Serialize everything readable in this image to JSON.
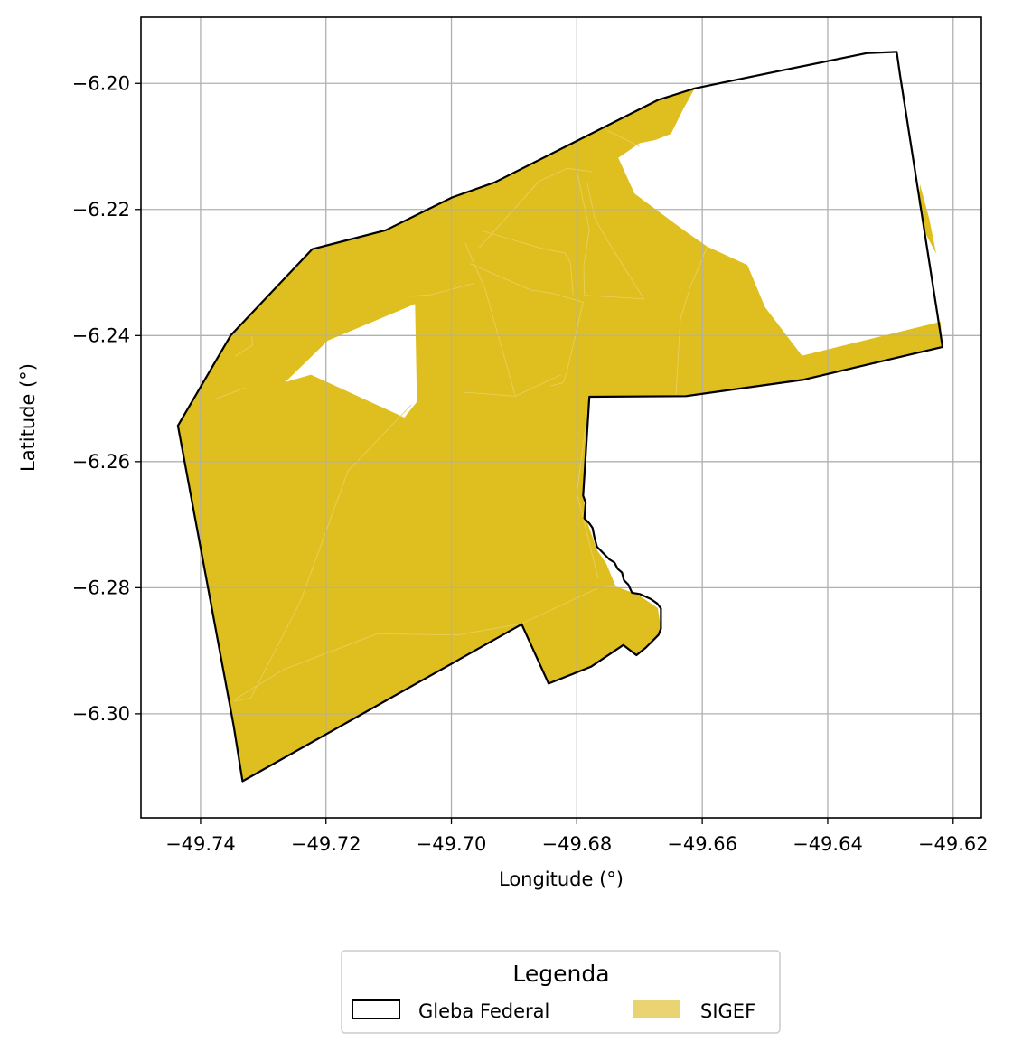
{
  "chart_data": {
    "type": "map",
    "xlabel": "Longitude (°)",
    "ylabel": "Latitude (°)",
    "xlim": [
      -49.7495,
      -49.6155
    ],
    "ylim": [
      -6.3165,
      -6.1895
    ],
    "x_ticks": [
      -49.74,
      -49.72,
      -49.7,
      -49.68,
      -49.66,
      -49.64,
      -49.62
    ],
    "x_tick_labels": [
      "−49.74",
      "−49.72",
      "−49.70",
      "−49.68",
      "−49.66",
      "−49.64",
      "−49.62"
    ],
    "y_ticks": [
      -6.2,
      -6.22,
      -6.24,
      -6.26,
      -6.28,
      -6.3
    ],
    "y_tick_labels": [
      "−6.20",
      "−6.22",
      "−6.24",
      "−6.26",
      "−6.28",
      "−6.30"
    ],
    "grid": true,
    "colors": {
      "sigef": "#dfbf1f",
      "sigef_legend": "#e9d372",
      "boundary": "#000000",
      "grid": "#b0b0b0"
    },
    "legend": {
      "title": "Legenda",
      "placement": "bottom-center",
      "entries": [
        {
          "label": "Gleba Federal",
          "style": "outline"
        },
        {
          "label": "SIGEF",
          "style": "fill"
        }
      ]
    },
    "layers": {
      "sigef_polygons": [
        [
          [
            -49.7436,
            -6.2543
          ],
          [
            -49.7352,
            -6.24
          ],
          [
            -49.7222,
            -6.2263
          ],
          [
            -49.7105,
            -6.2233
          ],
          [
            -49.6999,
            -6.2181
          ],
          [
            -49.6931,
            -6.2157
          ],
          [
            -49.667,
            -6.2026
          ],
          [
            -49.6612,
            -6.2008
          ],
          [
            -49.663,
            -6.204
          ],
          [
            -49.665,
            -6.208
          ],
          [
            -49.6675,
            -6.209
          ],
          [
            -49.67,
            -6.2095
          ],
          [
            -49.6734,
            -6.2118
          ],
          [
            -49.6708,
            -6.2175
          ],
          [
            -49.6632,
            -6.2231
          ],
          [
            -49.6592,
            -6.2259
          ],
          [
            -49.6528,
            -6.2288
          ],
          [
            -49.65,
            -6.2355
          ],
          [
            -49.6441,
            -6.2432
          ],
          [
            -49.622,
            -6.2378
          ],
          [
            -49.6217,
            -6.2418
          ],
          [
            -49.6438,
            -6.247
          ],
          [
            -49.6626,
            -6.2496
          ],
          [
            -49.678,
            -6.2497
          ],
          [
            -49.679,
            -6.2654
          ],
          [
            -49.6784,
            -6.2695
          ],
          [
            -49.6768,
            -6.274
          ],
          [
            -49.6753,
            -6.2762
          ],
          [
            -49.6738,
            -6.2798
          ],
          [
            -49.6703,
            -6.2811
          ],
          [
            -49.6671,
            -6.2832
          ],
          [
            -49.6665,
            -6.2871
          ],
          [
            -49.6705,
            -6.2907
          ],
          [
            -49.6726,
            -6.2891
          ],
          [
            -49.6777,
            -6.2925
          ],
          [
            -49.6845,
            -6.2952
          ],
          [
            -49.6888,
            -6.2858
          ],
          [
            -49.7333,
            -6.3107
          ],
          [
            -49.7347,
            -6.302
          ]
        ],
        [
          [
            -49.6253,
            -6.216
          ],
          [
            -49.6238,
            -6.2215
          ],
          [
            -49.6227,
            -6.227
          ],
          [
            -49.6243,
            -6.224
          ],
          [
            -49.6255,
            -6.219
          ]
        ]
      ],
      "sigef_holes": [
        [
          [
            -49.7058,
            -6.235
          ],
          [
            -49.7197,
            -6.2408
          ],
          [
            -49.7265,
            -6.2474
          ],
          [
            -49.7224,
            -6.2462
          ],
          [
            -49.7075,
            -6.253
          ],
          [
            -49.7055,
            -6.2505
          ]
        ]
      ],
      "sigef_internal_lines": [
        [
          [
            -49.7345,
            -6.2433
          ],
          [
            -49.7317,
            -6.2415
          ],
          [
            -49.7318,
            -6.2401
          ]
        ],
        [
          [
            -49.7375,
            -6.25
          ],
          [
            -49.7329,
            -6.2483
          ]
        ],
        [
          [
            -49.7067,
            -6.2338
          ],
          [
            -49.7032,
            -6.2335
          ],
          [
            -49.6964,
            -6.2317
          ]
        ],
        [
          [
            -49.6978,
            -6.2253
          ],
          [
            -49.6946,
            -6.2327
          ],
          [
            -49.6898,
            -6.2496
          ]
        ],
        [
          [
            -49.6951,
            -6.2234
          ],
          [
            -49.6855,
            -6.2262
          ],
          [
            -49.6819,
            -6.2269
          ],
          [
            -49.681,
            -6.2285
          ],
          [
            -49.6806,
            -6.2335
          ]
        ],
        [
          [
            -49.697,
            -6.2286
          ],
          [
            -49.6873,
            -6.2328
          ],
          [
            -49.6839,
            -6.2333
          ],
          [
            -49.679,
            -6.2347
          ],
          [
            -49.6816,
            -6.2458
          ],
          [
            -49.6822,
            -6.2475
          ],
          [
            -49.6842,
            -6.248
          ]
        ],
        [
          [
            -49.6981,
            -6.249
          ],
          [
            -49.6898,
            -6.2496
          ],
          [
            -49.6825,
            -6.2462
          ]
        ],
        [
          [
            -49.6956,
            -6.2261
          ],
          [
            -49.686,
            -6.2155
          ],
          [
            -49.6815,
            -6.2135
          ],
          [
            -49.6776,
            -6.214
          ]
        ],
        [
          [
            -49.68,
            -6.214
          ],
          [
            -49.678,
            -6.2232
          ],
          [
            -49.6789,
            -6.2289
          ],
          [
            -49.6788,
            -6.2336
          ]
        ],
        [
          [
            -49.6788,
            -6.2336
          ],
          [
            -49.6693,
            -6.2342
          ],
          [
            -49.6752,
            -6.2248
          ],
          [
            -49.6771,
            -6.2215
          ],
          [
            -49.6784,
            -6.2157
          ]
        ],
        [
          [
            -49.6751,
            -6.2075
          ],
          [
            -49.67,
            -6.21
          ]
        ],
        [
          [
            -49.6592,
            -6.2259
          ],
          [
            -49.662,
            -6.2325
          ],
          [
            -49.6635,
            -6.2374
          ],
          [
            -49.6642,
            -6.2493
          ]
        ],
        [
          [
            -49.7064,
            -6.251
          ],
          [
            -49.7165,
            -6.2615
          ],
          [
            -49.724,
            -6.282
          ],
          [
            -49.732,
            -6.2975
          ],
          [
            -49.7347,
            -6.298
          ]
        ],
        [
          [
            -49.7347,
            -6.2978
          ],
          [
            -49.7268,
            -6.293
          ],
          [
            -49.7118,
            -6.2873
          ],
          [
            -49.699,
            -6.2875
          ],
          [
            -49.6888,
            -6.2857
          ],
          [
            -49.6765,
            -6.28
          ],
          [
            -49.6738,
            -6.2798
          ]
        ],
        [
          [
            -49.678,
            -6.2497
          ],
          [
            -49.68,
            -6.265
          ],
          [
            -49.6766,
            -6.2785
          ]
        ]
      ],
      "gleba_federal": [
        [
          -49.7436,
          -6.2543
        ],
        [
          -49.7352,
          -6.24
        ],
        [
          -49.7222,
          -6.2263
        ],
        [
          -49.7105,
          -6.2233
        ],
        [
          -49.6999,
          -6.2181
        ],
        [
          -49.6931,
          -6.2157
        ],
        [
          -49.667,
          -6.2026
        ],
        [
          -49.6612,
          -6.2008
        ],
        [
          -49.6525,
          -6.199
        ],
        [
          -49.6338,
          -6.1952
        ],
        [
          -49.629,
          -6.195
        ],
        [
          -49.6285,
          -6.1985
        ],
        [
          -49.6217,
          -6.2418
        ],
        [
          -49.6438,
          -6.247
        ],
        [
          -49.6626,
          -6.2496
        ],
        [
          -49.678,
          -6.2497
        ],
        [
          -49.679,
          -6.2654
        ],
        [
          -49.6786,
          -6.2665
        ],
        [
          -49.6788,
          -6.269
        ],
        [
          -49.678,
          -6.2698
        ],
        [
          -49.6775,
          -6.2705
        ],
        [
          -49.6772,
          -6.272
        ],
        [
          -49.6768,
          -6.2735
        ],
        [
          -49.676,
          -6.2743
        ],
        [
          -49.6748,
          -6.2755
        ],
        [
          -49.674,
          -6.276
        ],
        [
          -49.6735,
          -6.277
        ],
        [
          -49.6728,
          -6.2776
        ],
        [
          -49.6725,
          -6.2788
        ],
        [
          -49.6718,
          -6.2795
        ],
        [
          -49.6712,
          -6.2808
        ],
        [
          -49.67,
          -6.281
        ],
        [
          -49.6682,
          -6.2818
        ],
        [
          -49.6672,
          -6.2825
        ],
        [
          -49.6666,
          -6.2833
        ],
        [
          -49.6666,
          -6.2865
        ],
        [
          -49.667,
          -6.2875
        ],
        [
          -49.669,
          -6.2895
        ],
        [
          -49.6705,
          -6.2907
        ],
        [
          -49.6726,
          -6.2891
        ],
        [
          -49.6777,
          -6.2925
        ],
        [
          -49.6845,
          -6.2952
        ],
        [
          -49.6888,
          -6.2858
        ],
        [
          -49.7333,
          -6.3107
        ],
        [
          -49.7347,
          -6.302
        ]
      ]
    }
  }
}
